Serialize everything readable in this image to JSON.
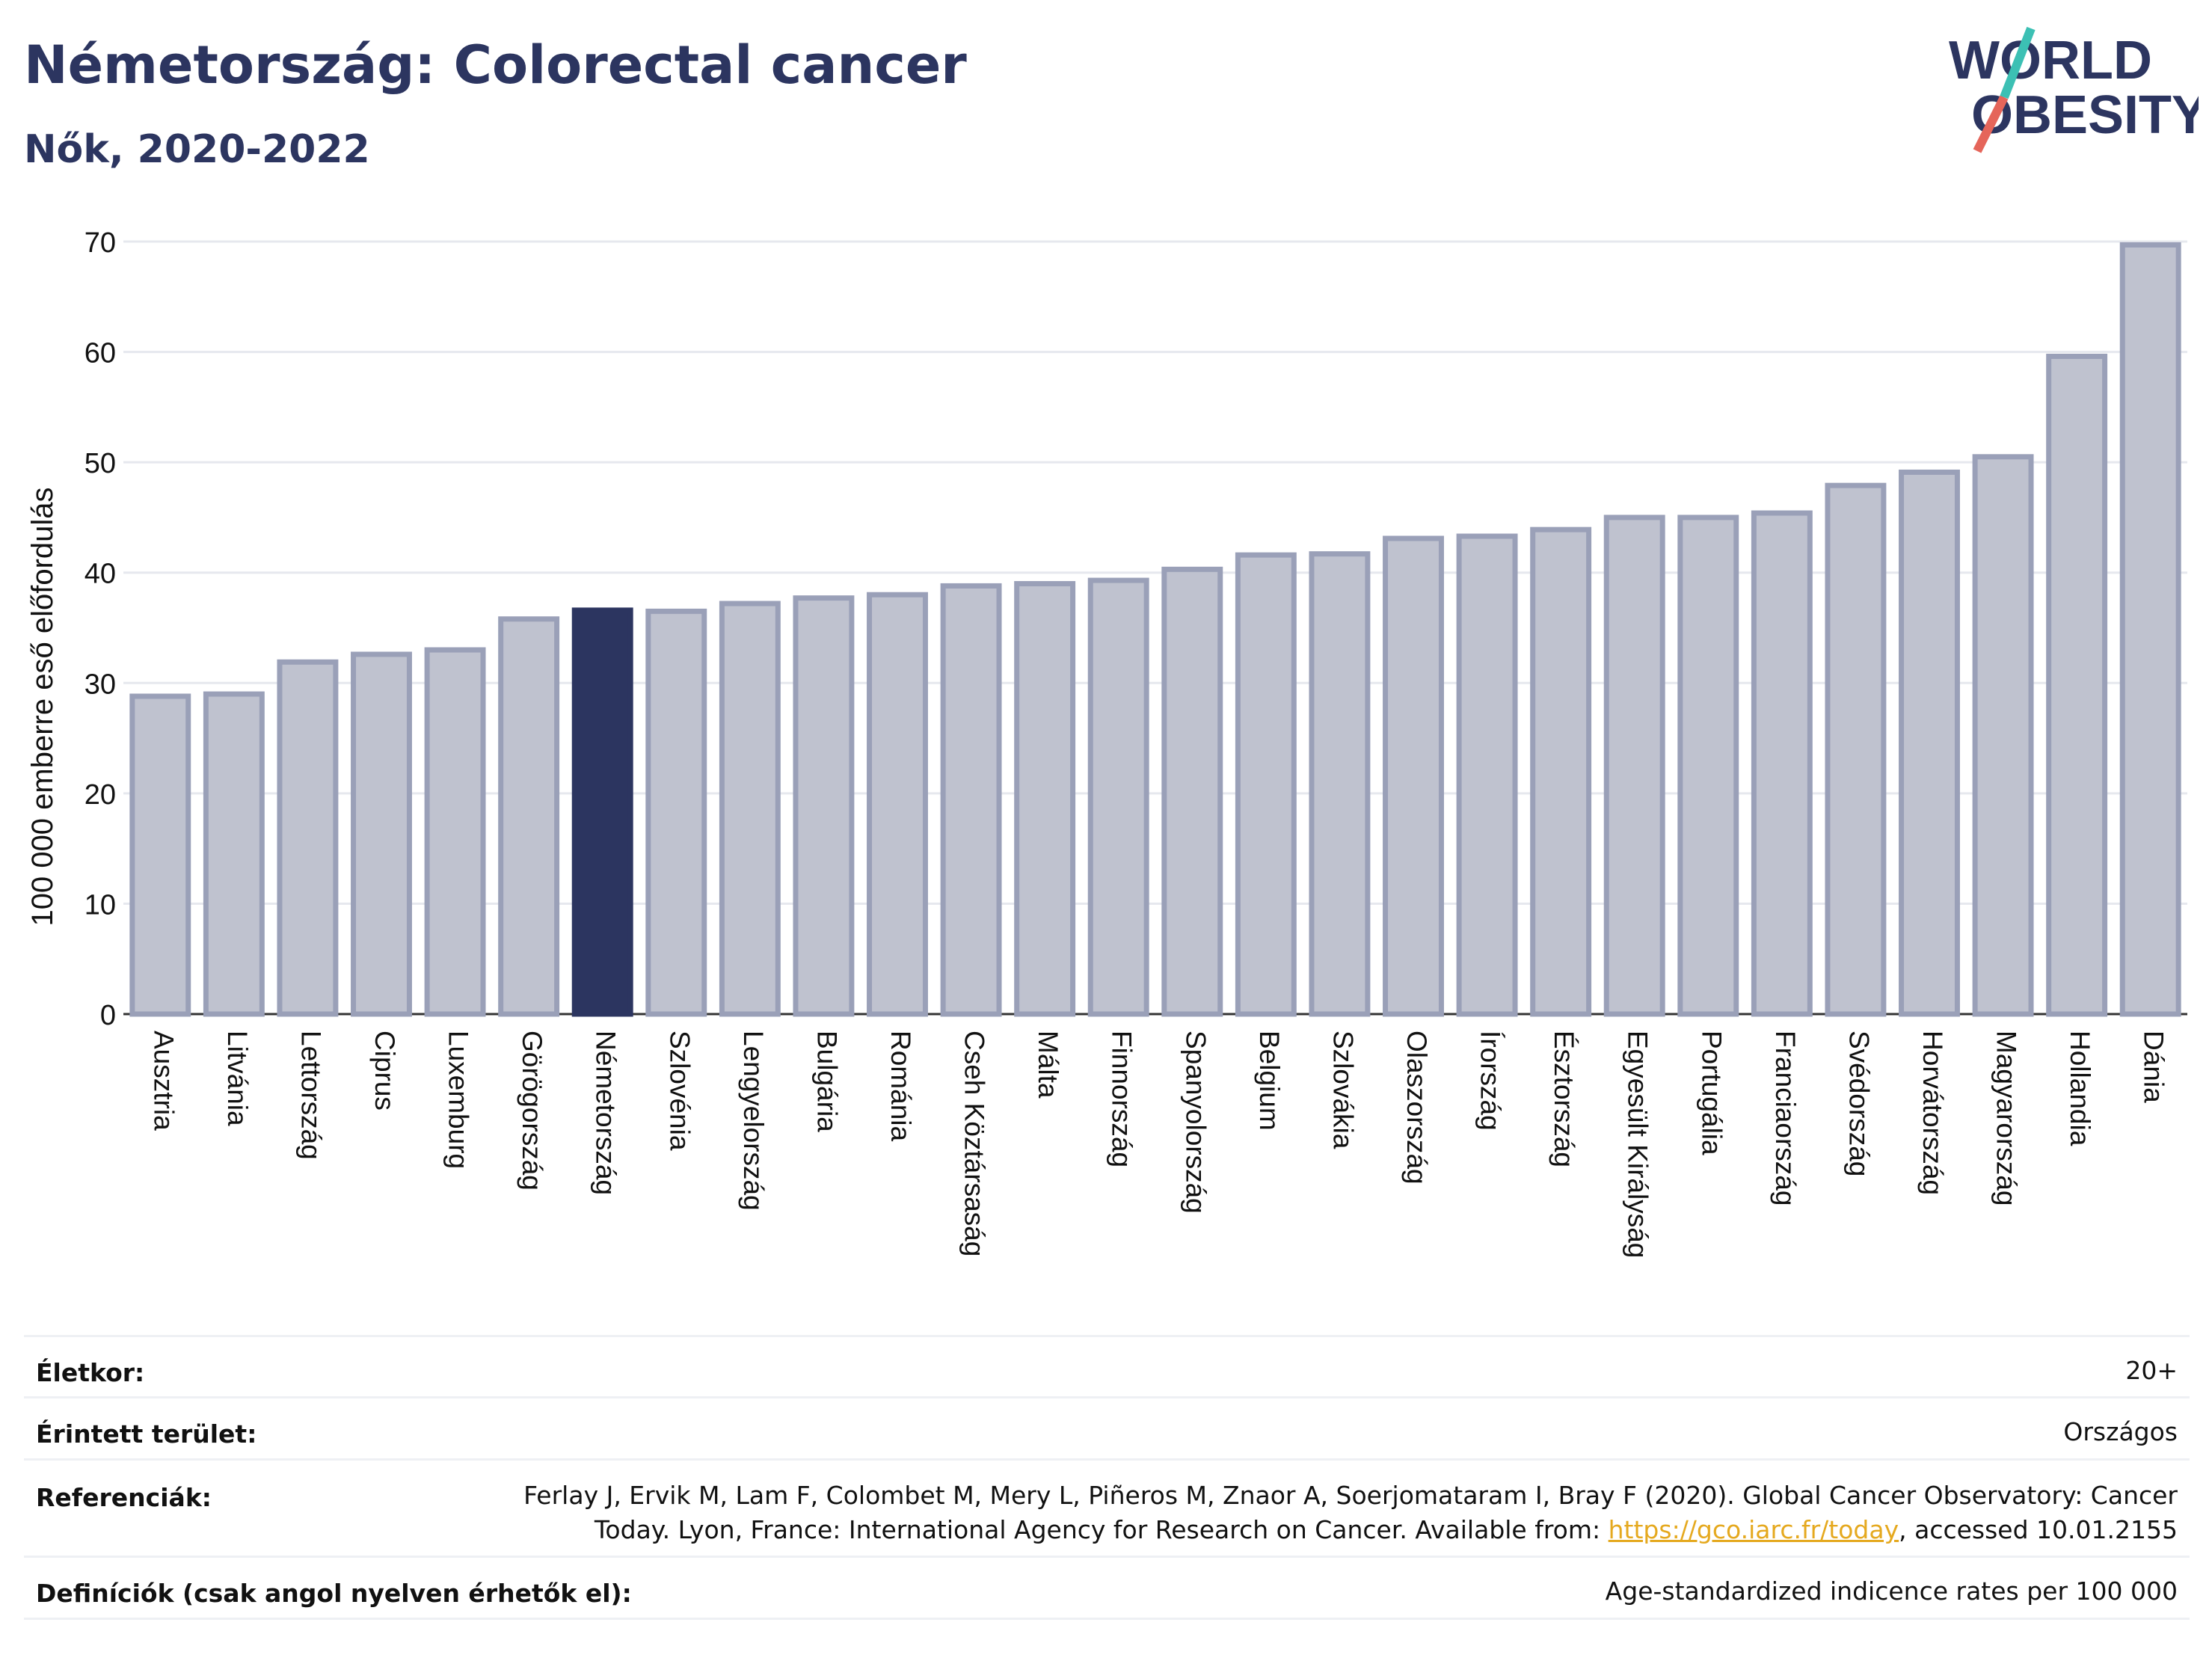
{
  "header": {
    "title": "Németország: Colorectal cancer",
    "subtitle": "Nők, 2020-2022"
  },
  "logo": {
    "line1": "WORLD",
    "line2": "OBESITY"
  },
  "colors": {
    "highlight": "#2c3560",
    "bar_fill": "#bfc2cf",
    "bar_stroke": "#9aa0b8",
    "link": "#e5a91f",
    "logo_teal": "#3cc0b4",
    "logo_red": "#e5655a"
  },
  "chart_data": {
    "type": "bar",
    "ylabel": "100 000 emberre eső előfordulás",
    "ylim": [
      0,
      70
    ],
    "yticks": [
      0,
      10,
      20,
      30,
      40,
      50,
      60,
      70
    ],
    "grid": true,
    "highlight": "Németország",
    "categories": [
      "Ausztria",
      "Litvánia",
      "Lettország",
      "Ciprus",
      "Luxemburg",
      "Görögország",
      "Németország",
      "Szlovénia",
      "Lengyelország",
      "Bulgária",
      "Románia",
      "Cseh Köztársaság",
      "Málta",
      "Finnország",
      "Spanyolország",
      "Belgium",
      "Szlovákia",
      "Olaszország",
      "Írország",
      "Észtország",
      "Egyesült Királyság",
      "Portugália",
      "Franciaország",
      "Svédország",
      "Horvátország",
      "Magyarország",
      "Hollandia",
      "Dánia"
    ],
    "values": [
      28.8,
      29.0,
      31.9,
      32.6,
      33.0,
      35.8,
      36.6,
      36.5,
      37.2,
      37.7,
      38.0,
      38.8,
      39.0,
      39.3,
      40.3,
      41.6,
      41.7,
      43.1,
      43.3,
      43.9,
      45.0,
      45.0,
      45.4,
      47.9,
      49.1,
      50.5,
      59.6,
      69.7
    ]
  },
  "meta": {
    "age_label": "Életkor:",
    "age_value": "20+",
    "area_label": "Érintett terület:",
    "area_value": "Országos",
    "ref_label": "Referenciák:",
    "ref_line1": "Ferlay J, Ervik M, Lam F, Colombet M, Mery L, Piñeros M, Znaor A, Soerjomataram I, Bray F (2020). Global Cancer Observatory: Cancer",
    "ref_line2_pre": "Today. Lyon, France: International Agency for Research on Cancer. Available from: ",
    "ref_link": "https://gco.iarc.fr/today",
    "ref_line2_post": ", accessed 10.01.2155",
    "def_label": "Definíciók (csak angol nyelven érhetők el):",
    "def_value": "Age-standardized indicence rates per 100 000"
  }
}
